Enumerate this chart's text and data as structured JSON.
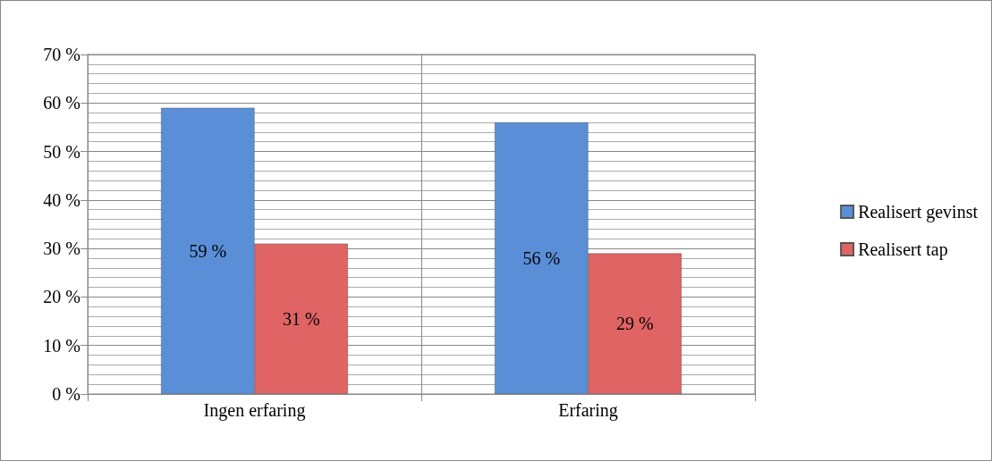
{
  "chart_data": {
    "type": "bar",
    "categories": [
      "Ingen erfaring",
      "Erfaring"
    ],
    "series": [
      {
        "name": "Realisert gevinst",
        "color": "#5a8fd8",
        "values": [
          59,
          56
        ],
        "value_labels": [
          "59 %",
          "56 %"
        ]
      },
      {
        "name": "Realisert tap",
        "color": "#e06464",
        "values": [
          31,
          29
        ],
        "value_labels": [
          "31 %",
          "29 %"
        ]
      }
    ],
    "ylim": [
      0,
      70
    ],
    "yticks": [
      {
        "value": 0,
        "label": "0 %"
      },
      {
        "value": 10,
        "label": "10 %"
      },
      {
        "value": 20,
        "label": "20 %"
      },
      {
        "value": 30,
        "label": "30 %"
      },
      {
        "value": 40,
        "label": "40 %"
      },
      {
        "value": 50,
        "label": "50 %"
      },
      {
        "value": 60,
        "label": "60 %"
      },
      {
        "value": 70,
        "label": "70 %"
      }
    ],
    "grid": true,
    "legend": "right"
  }
}
